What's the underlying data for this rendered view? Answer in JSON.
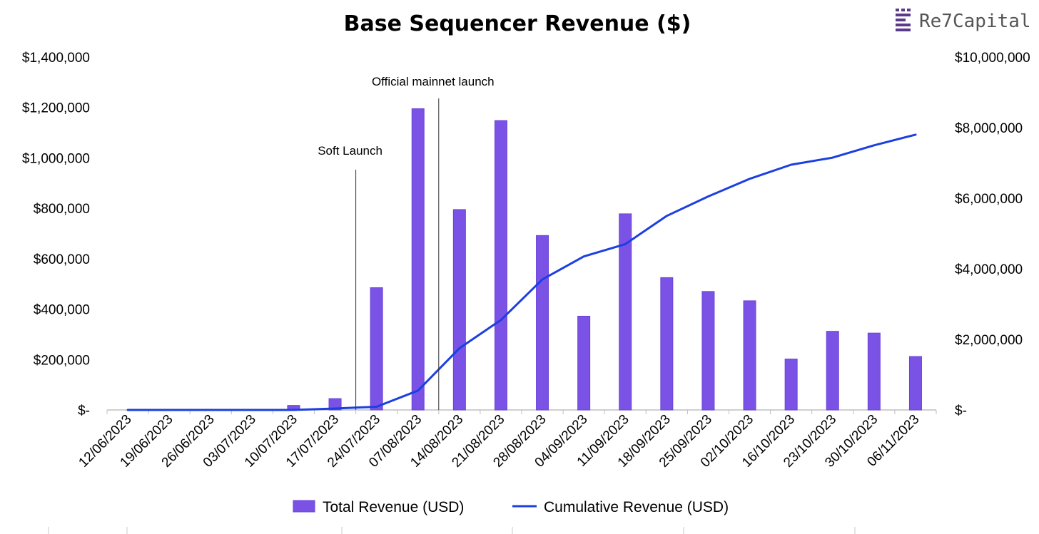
{
  "logo": {
    "text": "Re7Capital"
  },
  "colors": {
    "bar": "#7B52E6",
    "bar_edge": "#6A44D6",
    "line": "#1C3FE0",
    "axis": "#BFBFBF",
    "logo_mark": "#5B3A8A"
  },
  "chart_data": {
    "type": "bar",
    "title": "Base Sequencer Revenue ($)",
    "categories": [
      "12/06/2023",
      "19/06/2023",
      "26/06/2023",
      "03/07/2023",
      "10/07/2023",
      "17/07/2023",
      "24/07/2023",
      "07/08/2023",
      "14/08/2023",
      "21/08/2023",
      "28/08/2023",
      "04/09/2023",
      "11/09/2023",
      "18/09/2023",
      "25/09/2023",
      "02/10/2023",
      "16/10/2023",
      "23/10/2023",
      "30/10/2023",
      "06/11/2023"
    ],
    "series": [
      {
        "name": "Total Revenue (USD)",
        "type": "bar",
        "axis": "left",
        "values": [
          0,
          0,
          0,
          0,
          18000,
          45000,
          485000,
          1195000,
          795000,
          1148000,
          692000,
          372000,
          778000,
          525000,
          470000,
          433000,
          202000,
          312000,
          305000,
          212000
        ]
      },
      {
        "name": "Cumulative Revenue (USD)",
        "type": "line",
        "axis": "right",
        "values": [
          0,
          0,
          0,
          0,
          0,
          40000,
          90000,
          550000,
          1750000,
          2550000,
          3700000,
          4350000,
          4700000,
          5500000,
          6050000,
          6550000,
          6950000,
          7150000,
          7500000,
          7800000
        ]
      }
    ],
    "y_left": {
      "min": 0,
      "max": 1400000,
      "ticks": [
        0,
        200000,
        400000,
        600000,
        800000,
        1000000,
        1200000,
        1400000
      ],
      "tick_labels": [
        "$-",
        "$200,000",
        "$400,000",
        "$600,000",
        "$800,000",
        "$1,000,000",
        "$1,200,000",
        "$1,400,000"
      ]
    },
    "y_right": {
      "min": 0,
      "max": 10000000,
      "ticks": [
        0,
        2000000,
        4000000,
        6000000,
        8000000,
        10000000
      ],
      "tick_labels": [
        "$-",
        "$2,000,000",
        "$4,000,000",
        "$6,000,000",
        "$8,000,000",
        "$10,000,000"
      ]
    },
    "annotations": [
      {
        "label": "Soft Launch",
        "between": [
          5,
          6
        ]
      },
      {
        "label": "Official mainnet launch",
        "between": [
          7,
          8
        ]
      }
    ],
    "legend": {
      "position": "bottom"
    },
    "grid": false
  }
}
